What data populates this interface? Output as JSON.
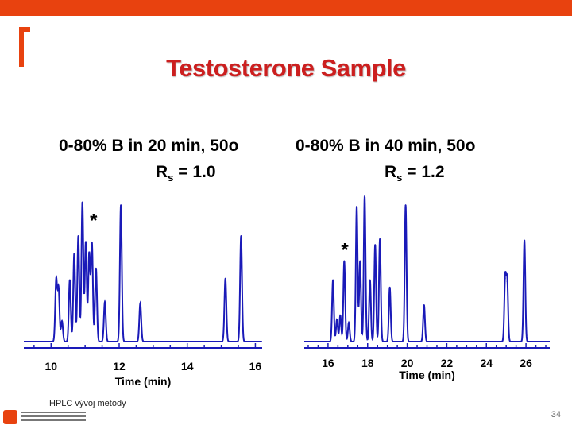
{
  "slide": {
    "title": "Testosterone Sample",
    "footer": "HPLC vývoj metody",
    "page_number": "34",
    "accent_color": "#e8420f",
    "title_color": "#cc1f1f",
    "trace_color": "#1a1ab8"
  },
  "chart_data": [
    {
      "type": "line",
      "condition": "0-80% B in 20 min, 50o",
      "rs_label": "Rs = 1.0",
      "rs_symbol": "R",
      "rs_subscript": "s",
      "rs_value": "= 1.0",
      "xlabel": "Time (min)",
      "xlim": [
        9.2,
        16.2
      ],
      "ylim": [
        0,
        1
      ],
      "tick_values": [
        10,
        12,
        14,
        16
      ],
      "tick_labels": [
        "10",
        "12",
        "14",
        "16"
      ],
      "marker": "*",
      "marker_x": 11.25,
      "marker_y": 0.78,
      "peaks": [
        {
          "t": 10.15,
          "h": 0.42
        },
        {
          "t": 10.22,
          "h": 0.36
        },
        {
          "t": 10.32,
          "h": 0.14
        },
        {
          "t": 10.55,
          "h": 0.42
        },
        {
          "t": 10.68,
          "h": 0.6
        },
        {
          "t": 10.8,
          "h": 0.72
        },
        {
          "t": 10.92,
          "h": 0.95
        },
        {
          "t": 11.02,
          "h": 0.68
        },
        {
          "t": 11.12,
          "h": 0.6
        },
        {
          "t": 11.2,
          "h": 0.67
        },
        {
          "t": 11.32,
          "h": 0.5
        },
        {
          "t": 11.58,
          "h": 0.27
        },
        {
          "t": 12.05,
          "h": 0.93
        },
        {
          "t": 12.62,
          "h": 0.26
        },
        {
          "t": 15.12,
          "h": 0.43
        },
        {
          "t": 15.58,
          "h": 0.72
        }
      ]
    },
    {
      "type": "line",
      "condition": "0-80% B in 40 min, 50o",
      "rs_label": "Rs = 1.2",
      "rs_symbol": "R",
      "rs_subscript": "s",
      "rs_value": "= 1.2",
      "xlabel": "Time (min)",
      "xlim": [
        14.8,
        27.2
      ],
      "ylim": [
        0,
        1
      ],
      "tick_values": [
        16,
        18,
        20,
        22,
        24,
        26
      ],
      "tick_labels": [
        "16",
        "18",
        "20",
        "22",
        "24",
        "26"
      ],
      "marker": "*",
      "marker_x": 16.85,
      "marker_y": 0.58,
      "peaks": [
        {
          "t": 16.25,
          "h": 0.42
        },
        {
          "t": 16.45,
          "h": 0.15
        },
        {
          "t": 16.62,
          "h": 0.18
        },
        {
          "t": 16.82,
          "h": 0.55
        },
        {
          "t": 17.05,
          "h": 0.13
        },
        {
          "t": 17.45,
          "h": 0.92
        },
        {
          "t": 17.62,
          "h": 0.55
        },
        {
          "t": 17.85,
          "h": 0.99
        },
        {
          "t": 18.12,
          "h": 0.42
        },
        {
          "t": 18.38,
          "h": 0.66
        },
        {
          "t": 18.62,
          "h": 0.7
        },
        {
          "t": 19.12,
          "h": 0.37
        },
        {
          "t": 19.92,
          "h": 0.93
        },
        {
          "t": 20.85,
          "h": 0.25
        },
        {
          "t": 24.95,
          "h": 0.43
        },
        {
          "t": 25.05,
          "h": 0.41
        },
        {
          "t": 25.92,
          "h": 0.69
        }
      ]
    }
  ]
}
